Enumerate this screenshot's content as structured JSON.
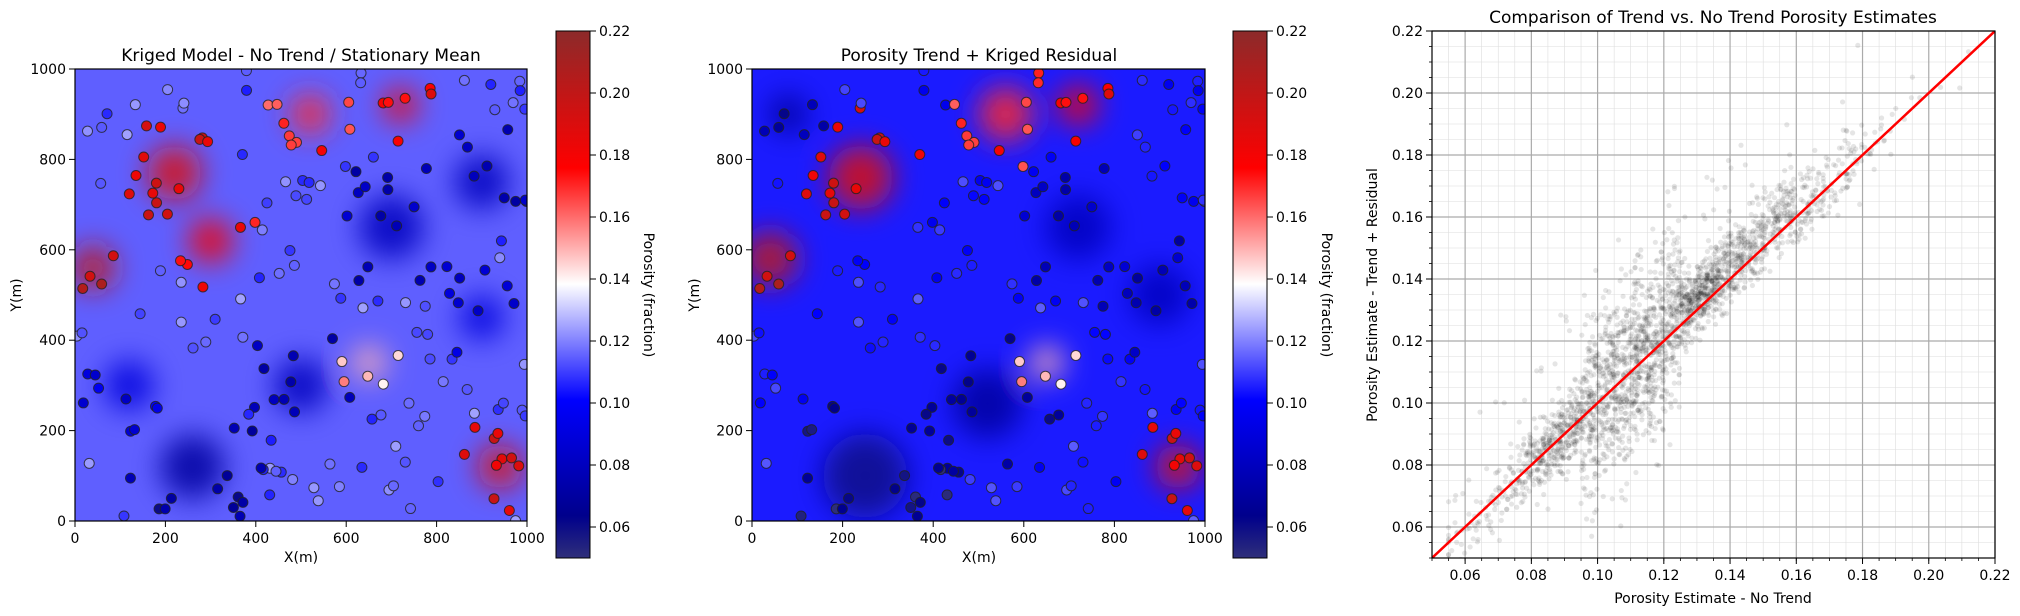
{
  "chart_data": [
    {
      "type": "heatmap",
      "title": "Kriged Model - No Trend / Stationary Mean",
      "xlabel": "X(m)",
      "ylabel": "Y(m)",
      "xlim": [
        0,
        1000
      ],
      "ylim": [
        0,
        1000
      ],
      "xticks": [
        "0",
        "200",
        "400",
        "600",
        "800",
        "1000"
      ],
      "yticks": [
        "0",
        "200",
        "400",
        "600",
        "800",
        "1000"
      ],
      "colormap": "seismic",
      "colorbar": {
        "label": "Porosity (fraction)",
        "range": [
          0.05,
          0.22
        ],
        "ticks": [
          "0.06",
          "0.08",
          "0.10",
          "0.12",
          "0.14",
          "0.16",
          "0.18",
          "0.20",
          "0.22"
        ]
      },
      "field_description": "high porosity (red) clusters upper-left (x 0-400, y 550-850) and lower-right (x 850-1000, y 50-200); low porosity (blue) over most of the rest",
      "hotspots": [
        {
          "x": 40,
          "y": 560,
          "v": 0.2,
          "r": 90
        },
        {
          "x": 220,
          "y": 770,
          "v": 0.19,
          "r": 110
        },
        {
          "x": 300,
          "y": 620,
          "v": 0.18,
          "r": 90
        },
        {
          "x": 520,
          "y": 900,
          "v": 0.17,
          "r": 80
        },
        {
          "x": 720,
          "y": 920,
          "v": 0.18,
          "r": 70
        },
        {
          "x": 940,
          "y": 120,
          "v": 0.19,
          "r": 90
        },
        {
          "x": 650,
          "y": 350,
          "v": 0.15,
          "r": 70
        },
        {
          "x": 260,
          "y": 120,
          "v": 0.07,
          "r": 130
        },
        {
          "x": 500,
          "y": 300,
          "v": 0.08,
          "r": 110
        },
        {
          "x": 700,
          "y": 650,
          "v": 0.08,
          "r": 130
        },
        {
          "x": 900,
          "y": 750,
          "v": 0.08,
          "r": 110
        },
        {
          "x": 120,
          "y": 300,
          "v": 0.09,
          "r": 100
        },
        {
          "x": 900,
          "y": 450,
          "v": 0.09,
          "r": 90
        }
      ],
      "scatter_points": "well data locations plotted as hollow circles with black edges, colored by porosity"
    },
    {
      "type": "heatmap",
      "title": "Porosity Trend + Kriged Residual",
      "xlabel": "X(m)",
      "ylabel": "Y(m)",
      "xlim": [
        0,
        1000
      ],
      "ylim": [
        0,
        1000
      ],
      "xticks": [
        "0",
        "200",
        "400",
        "600",
        "800",
        "1000"
      ],
      "yticks": [
        "0",
        "200",
        "400",
        "600",
        "800",
        "1000"
      ],
      "colormap": "seismic",
      "colorbar": {
        "label": "Porosity (fraction)",
        "range": [
          0.05,
          0.22
        ],
        "ticks": [
          "0.06",
          "0.08",
          "0.10",
          "0.12",
          "0.14",
          "0.16",
          "0.18",
          "0.20",
          "0.22"
        ]
      },
      "field_description": "smoother version with stronger red region in upper-left/top-center and stronger blue in lower half",
      "hotspots": [
        {
          "x": 40,
          "y": 580,
          "v": 0.2,
          "r": 110
        },
        {
          "x": 240,
          "y": 760,
          "v": 0.19,
          "r": 130
        },
        {
          "x": 560,
          "y": 900,
          "v": 0.17,
          "r": 110
        },
        {
          "x": 720,
          "y": 920,
          "v": 0.18,
          "r": 80
        },
        {
          "x": 940,
          "y": 120,
          "v": 0.19,
          "r": 90
        },
        {
          "x": 650,
          "y": 350,
          "v": 0.15,
          "r": 70
        },
        {
          "x": 250,
          "y": 100,
          "v": 0.06,
          "r": 170
        },
        {
          "x": 520,
          "y": 260,
          "v": 0.07,
          "r": 140
        },
        {
          "x": 720,
          "y": 650,
          "v": 0.08,
          "r": 130
        },
        {
          "x": 900,
          "y": 500,
          "v": 0.08,
          "r": 120
        },
        {
          "x": 80,
          "y": 900,
          "v": 0.07,
          "r": 80
        }
      ],
      "scatter_points": "well data locations plotted as hollow circles with black edges, colored by porosity"
    },
    {
      "type": "scatter",
      "title": "Comparison of Trend vs. No Trend Porosity Estimates",
      "xlabel": "Porosity Estimate - No Trend",
      "ylabel": "Porosity Estimate - Trend + Residual",
      "xlim": [
        0.05,
        0.22
      ],
      "ylim": [
        0.05,
        0.22
      ],
      "xticks": [
        "0.06",
        "0.08",
        "0.10",
        "0.12",
        "0.14",
        "0.16",
        "0.18",
        "0.20",
        "0.22"
      ],
      "yticks": [
        "0.06",
        "0.08",
        "0.10",
        "0.12",
        "0.14",
        "0.16",
        "0.18",
        "0.20",
        "0.22"
      ],
      "grid": true,
      "minor_grid": true,
      "point_color": "#000000",
      "point_alpha": 0.1,
      "line": {
        "x": [
          0.05,
          0.22
        ],
        "y": [
          0.05,
          0.22
        ],
        "color": "#ff0000"
      },
      "points_description": "dense black cloud of several thousand semi-transparent points along the 1:1 line from about 0.06 to 0.21, widest near x=0.10-0.12"
    }
  ],
  "colors": {
    "seismic_low": "#00004c",
    "seismic_mid_low": "#0000ff",
    "seismic_mid": "#ffffff",
    "seismic_mid_high": "#ff0000",
    "seismic_high": "#7f0000",
    "identity_line": "#ff0000"
  }
}
